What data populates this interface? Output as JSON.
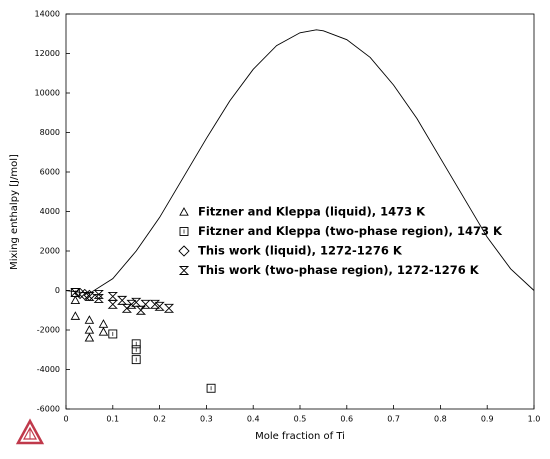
{
  "chart_data": {
    "type": "scatter",
    "x_label": "Mole fraction of Ti",
    "y_label": "Mixing enthalpy [J/mol]",
    "xlim": [
      0,
      1
    ],
    "ylim": [
      -6000,
      14000
    ],
    "xticks": [
      0,
      0.1,
      0.2,
      0.3,
      0.4,
      0.5,
      0.6,
      0.7,
      0.8,
      0.9,
      {
        "value": 1,
        "label": "1.0"
      }
    ],
    "yticks": [
      -6000,
      -4000,
      -2000,
      0,
      2000,
      4000,
      6000,
      8000,
      10000,
      12000,
      14000
    ],
    "series": [
      {
        "marker": "line",
        "color": "#000000",
        "x": [
          0,
          0.05,
          0.1,
          0.15,
          0.2,
          0.25,
          0.3,
          0.35,
          0.4,
          0.45,
          0.5,
          0.535,
          0.55,
          0.6,
          0.65,
          0.7,
          0.75,
          0.8,
          0.85,
          0.9,
          0.95,
          1.0
        ],
        "values": [
          0,
          -150,
          600,
          2000,
          3700,
          5700,
          7700,
          9600,
          11200,
          12400,
          13050,
          13200,
          13150,
          12700,
          11800,
          10400,
          8700,
          6700,
          4700,
          2700,
          1100,
          0
        ]
      },
      {
        "name": "Fitzner and Kleppa (liquid), 1473 K",
        "marker": "triangle",
        "color": "#000000",
        "x": [
          0.02,
          0.02,
          0.05,
          0.05,
          0.05,
          0.08,
          0.08
        ],
        "values": [
          -500,
          -1300,
          -1500,
          -2000,
          -2400,
          -1700,
          -2100
        ]
      },
      {
        "name": "Fitzner and Kleppa (two-phase region), 1473 K",
        "marker": "square",
        "color": "#000000",
        "x": [
          0.02,
          0.1,
          0.15,
          0.15,
          0.15,
          0.31
        ],
        "values": [
          -100,
          -2200,
          -2700,
          -3000,
          -3500,
          -4950
        ]
      },
      {
        "name": "This work (liquid), 1272-1276 K",
        "marker": "diamond",
        "color": "#000000",
        "x": [
          0.03,
          0.04,
          0.05
        ],
        "values": [
          -150,
          -200,
          -250
        ]
      },
      {
        "name": "This work (two-phase region), 1272-1276 K",
        "marker": "hourglass",
        "color": "#000000",
        "x": [
          0.02,
          0.05,
          0.07,
          0.07,
          0.1,
          0.1,
          0.12,
          0.13,
          0.14,
          0.15,
          0.16,
          0.17,
          0.19,
          0.2,
          0.22
        ],
        "values": [
          -100,
          -300,
          -200,
          -400,
          -300,
          -700,
          -500,
          -900,
          -700,
          -600,
          -1000,
          -700,
          -700,
          -800,
          -900
        ]
      }
    ]
  }
}
